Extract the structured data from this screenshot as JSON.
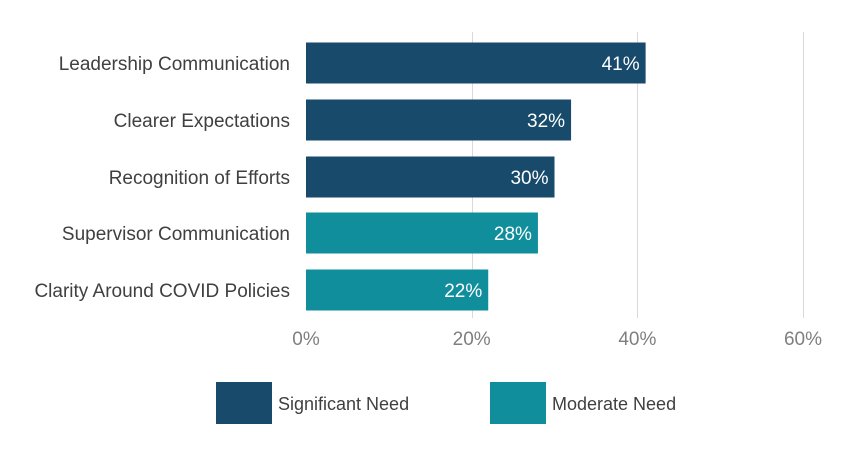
{
  "chart_data": {
    "type": "bar",
    "orientation": "horizontal",
    "categories": [
      "Leadership Communication",
      "Clearer Expectations",
      "Recognition of Efforts",
      "Supervisor Communication",
      "Clarity Around COVID Policies"
    ],
    "values": [
      41,
      32,
      30,
      28,
      22
    ],
    "value_labels": [
      "41%",
      "32%",
      "30%",
      "28%",
      "22%"
    ],
    "bar_series": [
      "Significant Need",
      "Significant Need",
      "Significant Need",
      "Moderate Need",
      "Moderate Need"
    ],
    "series": [
      {
        "name": "Significant Need",
        "color": "#174a6b"
      },
      {
        "name": "Moderate Need",
        "color": "#118e9c"
      }
    ],
    "xlim": [
      0,
      60
    ],
    "xticks": [
      0,
      20,
      40,
      60
    ],
    "xtick_labels": [
      "0%",
      "20%",
      "40%",
      "60%"
    ],
    "title": "",
    "xlabel": "",
    "ylabel": "",
    "grid": "vertical",
    "legend": "bottom-center"
  }
}
